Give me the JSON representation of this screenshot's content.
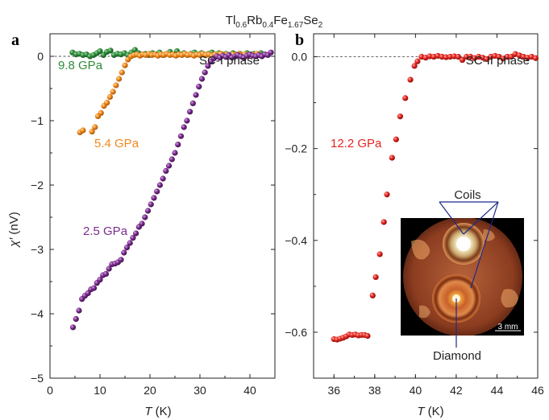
{
  "figure_title": {
    "base1": "Tl",
    "sub1": "0.6",
    "base2": "Rb",
    "sub2": "0.4",
    "base3": "Fe",
    "sub3": "1.67",
    "base4": "Se",
    "sub4": "2"
  },
  "chart_data": [
    {
      "panel": "a",
      "type": "scatter",
      "phase_label": "SC-I phase",
      "xlabel_var": "T",
      "xlabel_unit": " (K)",
      "ylabel_var": "χ′",
      "ylabel_unit": " (nV)",
      "xlim": [
        0,
        45
      ],
      "ylim": [
        -5,
        0.35
      ],
      "xticks": [
        0,
        10,
        20,
        30,
        40
      ],
      "yticks": [
        -5,
        -4,
        -3,
        -2,
        -1,
        0
      ],
      "ytick_labels": [
        "−5",
        "−4",
        "−3",
        "−2",
        "−1",
        "0"
      ],
      "reference_line_y": 0,
      "series": [
        {
          "name": "9.8 GPa",
          "color": "#2e8b3a",
          "points": [
            [
              4.5,
              0.06
            ],
            [
              5.2,
              0.03
            ],
            [
              5.9,
              0.04
            ],
            [
              6.6,
              0.02
            ],
            [
              7.3,
              0.03
            ],
            [
              8,
              0.0
            ],
            [
              8.7,
              0.02
            ],
            [
              9.4,
              0.05
            ],
            [
              10,
              0.08
            ],
            [
              10.7,
              0.02
            ],
            [
              11.4,
              0.07
            ],
            [
              12.1,
              0.09
            ],
            [
              12.8,
              0.02
            ],
            [
              13.5,
              0.04
            ],
            [
              14.2,
              0.03
            ],
            [
              14.9,
              0.05
            ],
            [
              15.6,
              0.02
            ],
            [
              16.3,
              0.06
            ],
            [
              17,
              0.1
            ],
            [
              17.7,
              0.05
            ],
            [
              18.4,
              0.03
            ],
            [
              19.1,
              0.04
            ],
            [
              19.8,
              0.02
            ],
            [
              20.5,
              0.05
            ],
            [
              21.2,
              0.03
            ],
            [
              21.9,
              0.06
            ],
            [
              22.6,
              0.02
            ],
            [
              23.3,
              0.04
            ],
            [
              24,
              0.07
            ],
            [
              24.7,
              0.03
            ],
            [
              25.4,
              0.08
            ],
            [
              26.1,
              0.03
            ],
            [
              26.8,
              0.05
            ],
            [
              27.5,
              0.02
            ],
            [
              28.2,
              0.04
            ],
            [
              28.9,
              0.06
            ],
            [
              29.6,
              0.03
            ],
            [
              30.3,
              0.05
            ],
            [
              31,
              0.02
            ],
            [
              31.7,
              0.04
            ],
            [
              32.4,
              0.06
            ],
            [
              33.1,
              0.02
            ],
            [
              33.8,
              0.05
            ],
            [
              34.5,
              0.03
            ],
            [
              35.2,
              0.04
            ],
            [
              35.9,
              0.02
            ],
            [
              36.6,
              0.05
            ],
            [
              37.3,
              0.03
            ],
            [
              38,
              0.04
            ],
            [
              38.7,
              0.02
            ],
            [
              39.4,
              0.05
            ],
            [
              40.1,
              0.03
            ],
            [
              40.8,
              0.04
            ],
            [
              41.5,
              0.02
            ],
            [
              42.2,
              0.05
            ],
            [
              42.9,
              0.03
            ]
          ]
        },
        {
          "name": "5.4 GPa",
          "color": "#f08a1c",
          "points": [
            [
              6,
              -1.18
            ],
            [
              6.6,
              -1.15
            ],
            [
              8.4,
              -1.17
            ],
            [
              9,
              -1.1
            ],
            [
              9.6,
              -0.93
            ],
            [
              10.2,
              -0.88
            ],
            [
              10.8,
              -0.77
            ],
            [
              11.4,
              -0.72
            ],
            [
              12,
              -0.63
            ],
            [
              12.6,
              -0.55
            ],
            [
              13.2,
              -0.45
            ],
            [
              13.8,
              -0.35
            ],
            [
              14.4,
              -0.25
            ],
            [
              15,
              -0.14
            ],
            [
              15.6,
              -0.05
            ],
            [
              16.2,
              0.0
            ],
            [
              16.8,
              0.02
            ],
            [
              17.4,
              0.03
            ],
            [
              18,
              0.01
            ],
            [
              18.6,
              0.03
            ],
            [
              19.2,
              0.02
            ],
            [
              19.8,
              0.04
            ],
            [
              20.4,
              0.02
            ],
            [
              21,
              0.03
            ],
            [
              21.6,
              0.01
            ],
            [
              22.2,
              0.03
            ],
            [
              22.8,
              0.02
            ],
            [
              23.4,
              0.04
            ],
            [
              24,
              0.02
            ],
            [
              24.6,
              0.03
            ],
            [
              25.2,
              0.01
            ],
            [
              25.8,
              0.03
            ],
            [
              26.4,
              0.02
            ],
            [
              27,
              0.04
            ],
            [
              27.6,
              0.02
            ],
            [
              28.2,
              0.03
            ],
            [
              28.8,
              0.01
            ],
            [
              29.4,
              0.03
            ],
            [
              30,
              0.02
            ],
            [
              30.6,
              0.04
            ],
            [
              31.2,
              0.02
            ],
            [
              31.8,
              0.03
            ],
            [
              32.4,
              0.01
            ],
            [
              33,
              0.03
            ],
            [
              33.6,
              0.02
            ],
            [
              34.2,
              0.04
            ],
            [
              34.8,
              0.02
            ],
            [
              35.4,
              0.03
            ],
            [
              36,
              0.01
            ],
            [
              36.6,
              0.03
            ],
            [
              37.2,
              0.02
            ],
            [
              37.8,
              0.04
            ],
            [
              38.4,
              0.02
            ],
            [
              39,
              0.03
            ],
            [
              39.6,
              0.01
            ],
            [
              40.2,
              0.03
            ],
            [
              40.8,
              0.02
            ],
            [
              41.4,
              0.04
            ],
            [
              42,
              0.02
            ]
          ]
        },
        {
          "name": "2.5 GPa",
          "color": "#7b2d8e",
          "points": [
            [
              4.6,
              -4.21
            ],
            [
              5.2,
              -4.08
            ],
            [
              5.8,
              -3.95
            ],
            [
              6.4,
              -3.77
            ],
            [
              7,
              -3.72
            ],
            [
              7.6,
              -3.68
            ],
            [
              8.2,
              -3.62
            ],
            [
              8.8,
              -3.6
            ],
            [
              9.4,
              -3.52
            ],
            [
              10,
              -3.47
            ],
            [
              10.6,
              -3.4
            ],
            [
              11.2,
              -3.38
            ],
            [
              11.8,
              -3.3
            ],
            [
              12.4,
              -3.23
            ],
            [
              13,
              -3.22
            ],
            [
              13.6,
              -3.2
            ],
            [
              14.2,
              -3.16
            ],
            [
              14.8,
              -3.05
            ],
            [
              15.4,
              -2.97
            ],
            [
              16,
              -2.9
            ],
            [
              16.6,
              -2.82
            ],
            [
              17.2,
              -2.75
            ],
            [
              17.8,
              -2.65
            ],
            [
              18.4,
              -2.6
            ],
            [
              19,
              -2.5
            ],
            [
              19.6,
              -2.4
            ],
            [
              20.2,
              -2.3
            ],
            [
              20.8,
              -2.2
            ],
            [
              21.4,
              -2.1
            ],
            [
              22,
              -2.0
            ],
            [
              22.6,
              -1.9
            ],
            [
              23.2,
              -1.78
            ],
            [
              23.8,
              -1.7
            ],
            [
              24.4,
              -1.6
            ],
            [
              25,
              -1.5
            ],
            [
              25.6,
              -1.37
            ],
            [
              26.2,
              -1.24
            ],
            [
              26.8,
              -1.1
            ],
            [
              27.4,
              -1.0
            ],
            [
              28,
              -0.86
            ],
            [
              28.6,
              -0.73
            ],
            [
              29.2,
              -0.6
            ],
            [
              29.8,
              -0.47
            ],
            [
              30.4,
              -0.35
            ],
            [
              31,
              -0.25
            ],
            [
              31.6,
              -0.15
            ],
            [
              32.2,
              -0.08
            ],
            [
              32.8,
              -0.03
            ],
            [
              33.4,
              0.0
            ],
            [
              34,
              -0.02
            ],
            [
              34.6,
              0.01
            ],
            [
              35.2,
              -0.01
            ],
            [
              35.8,
              0.02
            ],
            [
              36.4,
              -0.02
            ],
            [
              37,
              0.0
            ],
            [
              37.6,
              0.02
            ],
            [
              38.2,
              0.0
            ],
            [
              38.8,
              -0.02
            ],
            [
              39.4,
              0.01
            ],
            [
              40,
              0.03
            ],
            [
              40.6,
              0.01
            ],
            [
              41.2,
              0.0
            ],
            [
              41.8,
              0.02
            ],
            [
              42.4,
              0.0
            ],
            [
              43,
              0.03
            ],
            [
              43.6,
              0.02
            ],
            [
              44.2,
              0.06
            ]
          ]
        }
      ]
    },
    {
      "panel": "b",
      "type": "scatter",
      "phase_label": "SC-II phase",
      "xlabel_var": "T",
      "xlabel_unit": " (K)",
      "xlim": [
        35,
        46
      ],
      "ylim": [
        -0.7,
        0.05
      ],
      "xticks": [
        36,
        38,
        40,
        42,
        44,
        46
      ],
      "yticks": [
        -0.6,
        -0.4,
        -0.2,
        0.0
      ],
      "ytick_labels": [
        "−0.6",
        "−0.4",
        "−0.2",
        "0.0"
      ],
      "reference_line_y": 0,
      "series": [
        {
          "name": "12.2 GPa",
          "color": "#e52521",
          "points": [
            [
              36,
              -0.615
            ],
            [
              36.15,
              -0.616
            ],
            [
              36.3,
              -0.614
            ],
            [
              36.45,
              -0.612
            ],
            [
              36.6,
              -0.609
            ],
            [
              36.75,
              -0.605
            ],
            [
              36.9,
              -0.606
            ],
            [
              37.05,
              -0.605
            ],
            [
              37.2,
              -0.607
            ],
            [
              37.35,
              -0.606
            ],
            [
              37.5,
              -0.606
            ],
            [
              37.65,
              -0.608
            ],
            [
              37.9,
              -0.52
            ],
            [
              38.05,
              -0.48
            ],
            [
              38.25,
              -0.43
            ],
            [
              38.45,
              -0.36
            ],
            [
              38.6,
              -0.3
            ],
            [
              38.85,
              -0.22
            ],
            [
              39.05,
              -0.18
            ],
            [
              39.25,
              -0.13
            ],
            [
              39.5,
              -0.09
            ],
            [
              39.75,
              -0.05
            ],
            [
              39.95,
              -0.02
            ],
            [
              40.1,
              -0.01
            ],
            [
              40.3,
              0.0
            ],
            [
              40.5,
              -0.002
            ],
            [
              40.7,
              0.001
            ],
            [
              40.9,
              0.0
            ],
            [
              41.1,
              0.002
            ],
            [
              41.3,
              0.0
            ],
            [
              41.5,
              -0.001
            ],
            [
              41.7,
              0.0
            ],
            [
              41.9,
              0.001
            ],
            [
              42.1,
              0.0
            ],
            [
              42.3,
              -0.007
            ],
            [
              42.5,
              0.0
            ],
            [
              42.7,
              0.0
            ],
            [
              42.9,
              -0.003
            ],
            [
              43.1,
              0.0
            ],
            [
              43.3,
              -0.002
            ],
            [
              43.5,
              -0.005
            ],
            [
              43.7,
              0.0
            ],
            [
              43.9,
              0.002
            ],
            [
              44.1,
              0.0
            ],
            [
              44.3,
              -0.004
            ],
            [
              44.5,
              0.0
            ],
            [
              44.7,
              0.0
            ],
            [
              44.9,
              0.006
            ],
            [
              45.1,
              0.003
            ],
            [
              45.3,
              0.0
            ],
            [
              45.5,
              -0.002
            ],
            [
              45.7,
              0.0
            ],
            [
              45.9,
              -0.003
            ]
          ]
        }
      ],
      "inset": {
        "label_top": "Coils",
        "label_bottom": "Diamond",
        "scale_bar": "3 mm"
      }
    }
  ]
}
